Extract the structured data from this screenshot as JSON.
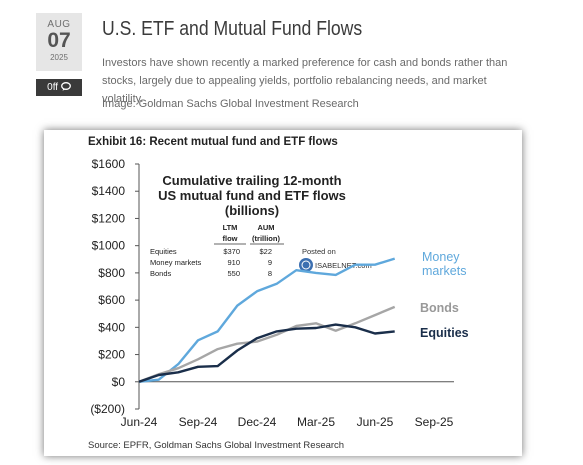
{
  "post": {
    "date": {
      "month": "AUG",
      "day": "07",
      "year": "2025"
    },
    "comments_label": "0ff",
    "title": "U.S. ETF and Mutual Fund Flows",
    "excerpt": "Investors have shown recently a marked preference for cash and bonds rather than stocks, largely due to appealing yields, portfolio rebalancing needs, and market volatility.",
    "image_credit": "Image: Goldman Sachs Global Investment Research"
  },
  "figure": {
    "exhibit_title": "Exhibit 16: Recent mutual fund and ETF flows",
    "source": "Source: EPFR, Goldman Sachs Global Investment Research",
    "watermark_line1": "Posted on",
    "watermark_line2": "ISABELNET.com"
  },
  "chart_data": {
    "type": "line",
    "title_lines": [
      "Cumulative trailing 12-month",
      "US mutual fund and ETF flows",
      "(billions)"
    ],
    "xlabel": "",
    "ylabel": "",
    "x_ticks": [
      "Jun-24",
      "Sep-24",
      "Dec-24",
      "Mar-25",
      "Jun-25",
      "Sep-25"
    ],
    "y_ticks": [
      "$1600",
      "$1400",
      "$1200",
      "$1000",
      "$800",
      "$600",
      "$400",
      "$200",
      "$0",
      "($200)"
    ],
    "ylim": [
      -200,
      1600
    ],
    "x": [
      "Jun-24",
      "Jul-24",
      "Aug-24",
      "Sep-24",
      "Oct-24",
      "Nov-24",
      "Dec-24",
      "Jan-25",
      "Feb-25",
      "Mar-25",
      "Apr-25",
      "May-25",
      "Jun-25",
      "Jul-25"
    ],
    "series": [
      {
        "name": "Money markets",
        "color": "#5fa8dc",
        "values": [
          0,
          15,
          130,
          305,
          370,
          560,
          665,
          720,
          820,
          800,
          785,
          860,
          860,
          905
        ]
      },
      {
        "name": "Bonds",
        "color": "#a6a6a6",
        "values": [
          0,
          55,
          100,
          165,
          240,
          280,
          295,
          345,
          410,
          430,
          375,
          430,
          490,
          550
        ]
      },
      {
        "name": "Equities",
        "color": "#1a2e4a",
        "values": [
          0,
          50,
          70,
          110,
          115,
          230,
          320,
          370,
          390,
          395,
          420,
          400,
          355,
          370
        ]
      }
    ],
    "table": {
      "headers": [
        "LTM flow",
        "AUM (trillion)"
      ],
      "header_top": [
        "LTM",
        "AUM"
      ],
      "header_bottom": [
        "flow",
        "(trillion)"
      ],
      "rows": [
        {
          "label": "Equities",
          "ltm": "$370",
          "aum": "$22"
        },
        {
          "label": "Money markets",
          "ltm": "910",
          "aum": "9"
        },
        {
          "label": "Bonds",
          "ltm": "550",
          "aum": "8"
        }
      ]
    },
    "end_labels": {
      "money_line1": "Money",
      "money_line2": "markets",
      "bonds": "Bonds",
      "equities": "Equities"
    },
    "grid": false,
    "legend": "line-end labels"
  }
}
